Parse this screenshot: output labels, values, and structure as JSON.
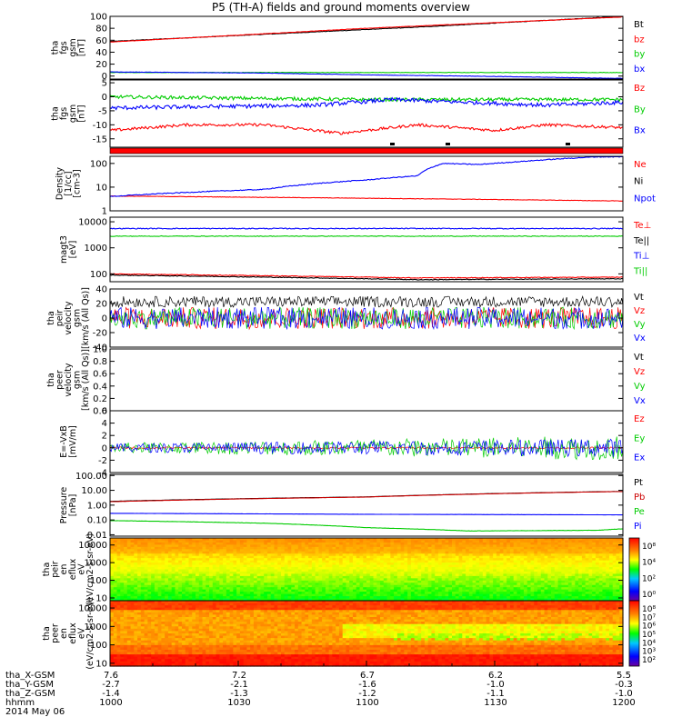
{
  "title": "P5 (TH-A) fields and ground moments overview",
  "chart_data": [
    {
      "id": "fgs_gsm",
      "type": "line",
      "ylabel": [
        "tha",
        "fgs",
        "gsm",
        "[nT]"
      ],
      "ylim": [
        -5,
        100
      ],
      "yticks": [
        "100",
        "80",
        "60",
        "40",
        "20",
        "0"
      ],
      "yticks_values": [
        100,
        80,
        60,
        40,
        20,
        0
      ],
      "series": [
        {
          "name": "Bt",
          "color": "#000000",
          "points": [
            [
              0,
              58
            ],
            [
              0.2,
              66
            ],
            [
              0.4,
              74
            ],
            [
              0.6,
              82
            ],
            [
              0.8,
              91
            ],
            [
              1,
              100
            ]
          ]
        },
        {
          "name": "bz",
          "color": "#ff0000",
          "points": [
            [
              0,
              57
            ],
            [
              0.5,
              80
            ],
            [
              1,
              99
            ]
          ]
        },
        {
          "name": "by",
          "color": "#00cc00",
          "points": [
            [
              0,
              6
            ],
            [
              0.5,
              6
            ],
            [
              1,
              6
            ]
          ]
        },
        {
          "name": "bx",
          "color": "#0000ff",
          "points": [
            [
              0,
              7
            ],
            [
              0.3,
              5
            ],
            [
              0.5,
              2
            ],
            [
              0.7,
              0
            ],
            [
              1,
              -4
            ]
          ]
        }
      ]
    },
    {
      "id": "fgs_dsl",
      "type": "line",
      "ylabel": [
        "tha",
        "fgs",
        "gsm",
        "[nT]"
      ],
      "ylim": [
        -18,
        6
      ],
      "yticks": [
        "5",
        "0",
        "-5",
        "-10",
        "-15"
      ],
      "yticks_values": [
        5,
        0,
        -5,
        -10,
        -15
      ],
      "series": [
        {
          "name": "Bz",
          "color": "#ff0000",
          "points": [
            [
              0,
              -12
            ],
            [
              0.15,
              -10
            ],
            [
              0.3,
              -10
            ],
            [
              0.45,
              -13
            ],
            [
              0.6,
              -10
            ],
            [
              0.75,
              -12
            ],
            [
              0.85,
              -10
            ],
            [
              1,
              -11
            ]
          ]
        },
        {
          "name": "By",
          "color": "#00cc00",
          "points": [
            [
              0,
              0
            ],
            [
              0.5,
              -1
            ],
            [
              1,
              -1
            ]
          ]
        },
        {
          "name": "Bx",
          "color": "#0000ff",
          "points": [
            [
              0,
              -4
            ],
            [
              0.4,
              -3
            ],
            [
              0.55,
              -1
            ],
            [
              0.7,
              -2
            ],
            [
              0.85,
              -3
            ],
            [
              1,
              -2
            ]
          ]
        }
      ]
    },
    {
      "id": "density",
      "type": "line",
      "ylabel": [
        "Density",
        "[1/cc]",
        "[cm-3]"
      ],
      "ylog": true,
      "ylim": [
        1,
        200
      ],
      "yticks": [
        "100",
        "10",
        "1"
      ],
      "yticks_values": [
        100,
        10,
        1
      ],
      "series": [
        {
          "name": "Ne",
          "color": "#ff0000",
          "points": [
            [
              0,
              4.2
            ],
            [
              0.5,
              3.4
            ],
            [
              1,
              2.6
            ]
          ]
        },
        {
          "name": "Ni",
          "color": "#000000",
          "points": []
        },
        {
          "name": "Npot",
          "color": "#0000ff",
          "points": [
            [
              0,
              4
            ],
            [
              0.3,
              8
            ],
            [
              0.5,
              20
            ],
            [
              0.6,
              30
            ],
            [
              0.65,
              100
            ],
            [
              0.72,
              90
            ],
            [
              0.8,
              120
            ],
            [
              0.95,
              190
            ],
            [
              1,
              190
            ]
          ]
        }
      ]
    },
    {
      "id": "temperature",
      "type": "line",
      "ylabel": [
        "magt3",
        "[eV]"
      ],
      "ylog": true,
      "ylim": [
        50,
        15000
      ],
      "yticks": [
        "10000",
        "1000",
        "100"
      ],
      "yticks_values": [
        10000,
        1000,
        100
      ],
      "series": [
        {
          "name": "Te⊥",
          "color": "#ff0000",
          "points": [
            [
              0,
              100
            ],
            [
              0.4,
              80
            ],
            [
              0.6,
              70
            ],
            [
              1,
              75
            ]
          ]
        },
        {
          "name": "Te||",
          "color": "#000000",
          "points": [
            [
              0,
              90
            ],
            [
              0.4,
              70
            ],
            [
              0.6,
              60
            ],
            [
              1,
              65
            ]
          ]
        },
        {
          "name": "Ti⊥",
          "color": "#0000ff",
          "points": [
            [
              0,
              5500
            ],
            [
              1,
              5500
            ]
          ]
        },
        {
          "name": "Ti||",
          "color": "#00cc00",
          "points": [
            [
              0,
              2800
            ],
            [
              1,
              2800
            ]
          ]
        }
      ]
    },
    {
      "id": "peir_velocity",
      "type": "line",
      "ylabel": [
        "tha",
        "peir",
        "velocity",
        "gsm",
        "[km/s (All Qs)]"
      ],
      "ylim": [
        -40,
        40
      ],
      "yticks": [
        "40",
        "20",
        "0",
        "-20",
        "-40"
      ],
      "yticks_values": [
        40,
        20,
        0,
        -20,
        -40
      ],
      "series": [
        {
          "name": "Vt",
          "color": "#000000",
          "points": [
            [
              0,
              18
            ],
            [
              1,
              18
            ]
          ]
        },
        {
          "name": "Vz",
          "color": "#ff0000",
          "points": [
            [
              0,
              0
            ],
            [
              1,
              0
            ]
          ]
        },
        {
          "name": "Vy",
          "color": "#00cc00",
          "points": [
            [
              0,
              0
            ],
            [
              1,
              0
            ]
          ]
        },
        {
          "name": "Vx",
          "color": "#0000ff",
          "points": [
            [
              0,
              0
            ],
            [
              1,
              0
            ]
          ]
        }
      ]
    },
    {
      "id": "peer_velocity",
      "type": "line",
      "ylabel": [
        "tha",
        "peer",
        "velocity",
        "gsm",
        "[km/s (All Qs)]"
      ],
      "ylim": [
        0,
        1
      ],
      "yticks": [
        "1.0",
        "0.8",
        "0.6",
        "0.4",
        "0.2",
        "0.0"
      ],
      "yticks_values": [
        1.0,
        0.8,
        0.6,
        0.4,
        0.2,
        0.0
      ],
      "series": [
        {
          "name": "Vt",
          "color": "#000000",
          "points": []
        },
        {
          "name": "Vz",
          "color": "#ff0000",
          "points": []
        },
        {
          "name": "Vy",
          "color": "#00cc00",
          "points": []
        },
        {
          "name": "Vx",
          "color": "#0000ff",
          "points": []
        }
      ]
    },
    {
      "id": "efield",
      "type": "line",
      "ylabel": [
        "E=-VxB",
        "[mV/m]"
      ],
      "ylim": [
        -4,
        6
      ],
      "yticks": [
        "6",
        "4",
        "2",
        "0",
        "-2",
        "-4"
      ],
      "yticks_values": [
        6,
        4,
        2,
        0,
        -2,
        -4
      ],
      "series": [
        {
          "name": "Ez",
          "color": "#ff0000",
          "points": [
            [
              0,
              0
            ],
            [
              1,
              0
            ]
          ]
        },
        {
          "name": "Ey",
          "color": "#00cc00",
          "points": [
            [
              0,
              0
            ],
            [
              1,
              0
            ]
          ]
        },
        {
          "name": "Ex",
          "color": "#0000ff",
          "points": [
            [
              0,
              0
            ],
            [
              1,
              0
            ]
          ]
        }
      ]
    },
    {
      "id": "pressure",
      "type": "line",
      "ylabel": [
        "Pressure",
        "[nPa]"
      ],
      "ylog": true,
      "ylim": [
        0.008,
        120
      ],
      "yticks": [
        "100.00",
        "10.00",
        "1.00",
        "0.10",
        "0.01"
      ],
      "yticks_values": [
        100,
        10,
        1,
        0.1,
        0.01
      ],
      "series": [
        {
          "name": "Pt",
          "color": "#000000",
          "points": [
            [
              0,
              1.8
            ],
            [
              0.5,
              3.6
            ],
            [
              1,
              8.5
            ]
          ]
        },
        {
          "name": "Pb",
          "color": "#cc0000",
          "points": [
            [
              0,
              1.7
            ],
            [
              0.5,
              3.5
            ],
            [
              1,
              8.3
            ]
          ]
        },
        {
          "name": "Pe",
          "color": "#00cc00",
          "points": [
            [
              0,
              0.09
            ],
            [
              0.3,
              0.06
            ],
            [
              0.5,
              0.03
            ],
            [
              0.7,
              0.018
            ],
            [
              0.95,
              0.02
            ],
            [
              1,
              0.025
            ]
          ]
        },
        {
          "name": "Pi",
          "color": "#0000ff",
          "points": [
            [
              0,
              0.28
            ],
            [
              0.5,
              0.24
            ],
            [
              1,
              0.22
            ]
          ]
        }
      ]
    },
    {
      "id": "peir_eflux",
      "type": "heatmap",
      "ylabel": [
        "tha",
        "peir",
        "en",
        "eflux",
        "eV",
        "(eV/cm2-s-sr-eV)"
      ],
      "ylog": true,
      "ylim": [
        7,
        25000
      ],
      "yticks": [
        "10000",
        "1000",
        "100",
        "10"
      ],
      "yticks_values": [
        10000,
        1000,
        100,
        10
      ],
      "colorbar_ticks": [
        "10⁸",
        "10⁴",
        "10²",
        "10⁰"
      ]
    },
    {
      "id": "peer_eflux",
      "type": "heatmap",
      "ylabel": [
        "tha",
        "peer",
        "en",
        "eflux",
        "eV",
        "(eV/cm2-s-sr-eV)"
      ],
      "ylog": true,
      "ylim": [
        7,
        25000
      ],
      "yticks": [
        "10000",
        "1000",
        "100",
        "10"
      ],
      "yticks_values": [
        10000,
        1000,
        100,
        10
      ],
      "colorbar_ticks": [
        "10⁸",
        "10⁷",
        "10⁶",
        "10⁵",
        "10⁴",
        "10³",
        "10²"
      ]
    }
  ],
  "footer": {
    "rows": [
      {
        "label": "tha_X-GSM",
        "values": [
          "7.6",
          "7.2",
          "6.7",
          "6.2",
          "5.5"
        ]
      },
      {
        "label": "tha_Y-GSM",
        "values": [
          "-2.7",
          "-2.1",
          "-1.6",
          "-1.0",
          "-0.3"
        ]
      },
      {
        "label": "tha_Z-GSM",
        "values": [
          "-1.4",
          "-1.3",
          "-1.2",
          "-1.1",
          "-1.0"
        ]
      },
      {
        "label": "hhmm",
        "values": [
          "1000",
          "1030",
          "1100",
          "1130",
          "1200"
        ]
      }
    ],
    "date": "2014 May 06"
  }
}
